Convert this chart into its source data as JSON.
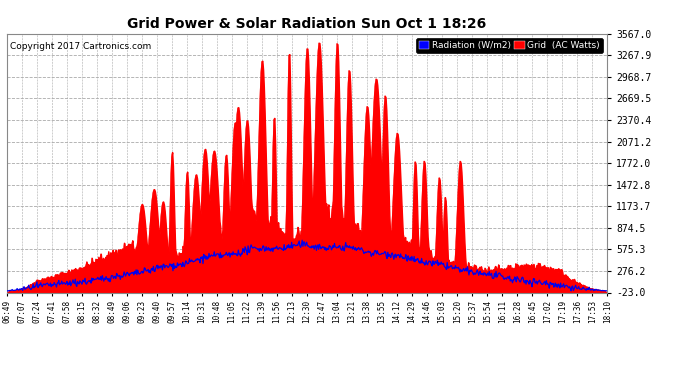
{
  "title": "Grid Power & Solar Radiation Sun Oct 1 18:26",
  "copyright": "Copyright 2017 Cartronics.com",
  "legend_labels": [
    "Radiation (W/m2)",
    "Grid  (AC Watts)"
  ],
  "yticks": [
    -23.0,
    276.2,
    575.3,
    874.5,
    1173.7,
    1472.8,
    1772.0,
    2071.2,
    2370.4,
    2669.5,
    2968.7,
    3267.9,
    3567.0
  ],
  "ymin": -23.0,
  "ymax": 3567.0,
  "background_color": "#ffffff",
  "grid_color": "#aaaaaa",
  "fill_color": "#ff0000",
  "line_color": "#0000ee",
  "x_labels": [
    "06:49",
    "07:07",
    "07:24",
    "07:41",
    "07:58",
    "08:15",
    "08:32",
    "08:49",
    "09:06",
    "09:23",
    "09:40",
    "09:57",
    "10:14",
    "10:31",
    "10:48",
    "11:05",
    "11:22",
    "11:39",
    "11:56",
    "12:13",
    "12:30",
    "12:47",
    "13:04",
    "13:21",
    "13:38",
    "13:55",
    "14:12",
    "14:29",
    "14:46",
    "15:03",
    "15:20",
    "15:37",
    "15:54",
    "16:11",
    "16:28",
    "16:45",
    "17:02",
    "17:19",
    "17:36",
    "17:53",
    "18:10"
  ],
  "n_points": 800,
  "seed": 42
}
